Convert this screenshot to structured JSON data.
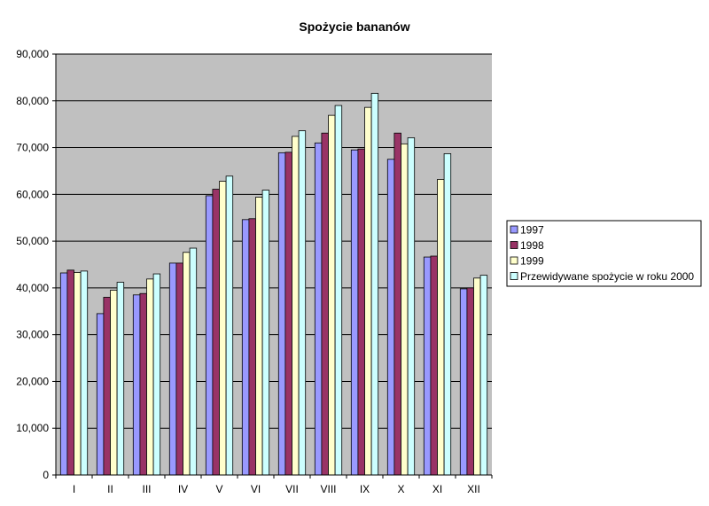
{
  "chart_data": {
    "type": "bar",
    "title": "Spożycie bananów",
    "xlabel": "",
    "ylabel": "",
    "ylim": [
      0,
      90000
    ],
    "yticks": [
      "0",
      "10,000",
      "20,000",
      "30,000",
      "40,000",
      "50,000",
      "60,000",
      "70,000",
      "80,000",
      "90,000"
    ],
    "grid": true,
    "legend_position": "right",
    "categories": [
      "I",
      "II",
      "III",
      "IV",
      "V",
      "VI",
      "VII",
      "VIII",
      "IX",
      "X",
      "XI",
      "XII"
    ],
    "series": [
      {
        "name": "1997",
        "color": "#9999ff",
        "values": [
          43200,
          34500,
          38500,
          45300,
          59700,
          54600,
          68900,
          71000,
          69500,
          67500,
          46600,
          39800
        ]
      },
      {
        "name": "1998",
        "color": "#993366",
        "values": [
          43800,
          38000,
          38800,
          45300,
          61100,
          54800,
          69000,
          73100,
          69700,
          73100,
          46800,
          40000
        ]
      },
      {
        "name": "1999",
        "color": "#ffffcc",
        "values": [
          43300,
          39500,
          41900,
          47600,
          62800,
          59400,
          72400,
          76900,
          78600,
          70800,
          63200,
          42100
        ]
      },
      {
        "name": "Przewidywane spożycie w roku 2000",
        "color": "#ccffff",
        "values": [
          43600,
          41200,
          43000,
          48500,
          63900,
          60900,
          73600,
          79000,
          81600,
          72100,
          68700,
          42700
        ]
      }
    ]
  },
  "colors": {
    "plot_background": "#c0c0c0",
    "gridline": "#000000"
  }
}
